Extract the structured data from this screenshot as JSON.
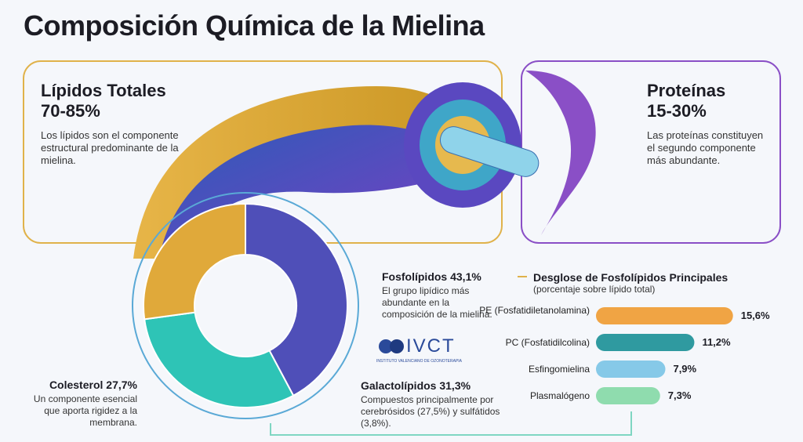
{
  "title": "Composición Química de la Mielina",
  "panels": [
    {
      "heading": "Lípidos Totales",
      "range": "70-85%",
      "text": "Los lípidos son el componente estructural predominante de la mielina."
    },
    {
      "heading": "Proteínas",
      "range": "15-30%",
      "text": "Las proteínas constituyen el segundo componente más abundante."
    }
  ],
  "logo": {
    "text": "IVCT",
    "subtext": "INSTITUTO VALENCIANO DE OZONOTERAPIA"
  },
  "chart_data": [
    {
      "type": "pie",
      "categories": [
        "Fosfolípidos",
        "Galactolípidos",
        "Colesterol"
      ],
      "values": [
        43.1,
        31.3,
        27.7
      ],
      "value_labels": [
        "43,1%",
        "31,3%",
        "27,7%"
      ],
      "descriptions": [
        "El grupo lipídico más abundante en la composición de la mielina.",
        "Compuestos principalmente por cerebrósidos (27,5%) y sulfátidos (3,8%).",
        "Un componente esencial que aporta rigidez a la membrana."
      ],
      "colors": [
        "#4f4fb8",
        "#2ec4b6",
        "#e0a93a"
      ]
    },
    {
      "type": "bar",
      "title": "Desglose de Fosfolípidos Principales",
      "subtitle": "(porcentaje sobre lípido total)",
      "categories": [
        "PE (Fosfatidiletanolamina)",
        "PC (Fosfatidilcolina)",
        "Esfingomielina",
        "Plasmalógeno"
      ],
      "values": [
        15.6,
        11.2,
        7.9,
        7.3
      ],
      "value_labels": [
        "15,6%",
        "11,2%",
        "7,9%",
        "7,3%"
      ],
      "colors": [
        "#f0a444",
        "#2f9aa0",
        "#86c9e8",
        "#8fdcae"
      ]
    }
  ]
}
